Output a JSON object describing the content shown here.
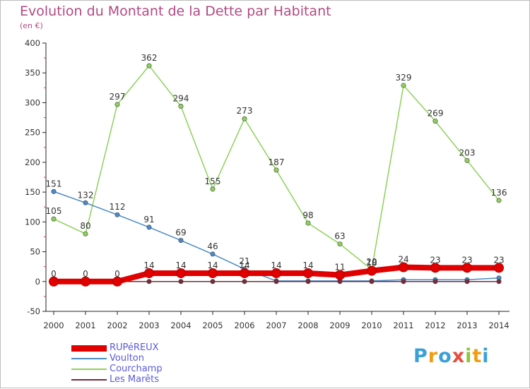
{
  "title": "Evolution du Montant de la Dette par Habitant",
  "unit_label": "(en €)",
  "brand": {
    "letters": [
      "P",
      "r",
      "o",
      "x",
      "i",
      "t",
      "i"
    ],
    "colors": [
      "#3aa0d8",
      "#f39c12",
      "#3aa0d8",
      "#e74c3c",
      "#8cc63f",
      "#f39c12",
      "#3aa0d8"
    ]
  },
  "chart_data": {
    "type": "line",
    "title": "Evolution du Montant de la Dette par Habitant",
    "ylabel": "(en €)",
    "x": [
      "2000",
      "2001",
      "2002",
      "2003",
      "2004",
      "2005",
      "2006",
      "2007",
      "2008",
      "2009",
      "2010",
      "2011",
      "2012",
      "2013",
      "2014"
    ],
    "ylim": [
      -50,
      400
    ],
    "yticks": [
      -50,
      0,
      50,
      100,
      150,
      200,
      250,
      300,
      350,
      400
    ],
    "grid": false,
    "legend_position": "bottom-left",
    "series": [
      {
        "name": "RUPéREUX",
        "color": "#e00000",
        "width": 8,
        "values": [
          0,
          0,
          0,
          14,
          14,
          14,
          14,
          14,
          14,
          11,
          18,
          24,
          23,
          23,
          23
        ],
        "labels": [
          "0",
          "0",
          "0",
          "14",
          "14",
          "14",
          "14",
          "14",
          "14",
          "11",
          "18",
          "24",
          "23",
          "23",
          "23"
        ]
      },
      {
        "name": "Voulton",
        "color": "#4a8ac8",
        "width": 1.5,
        "values": [
          151,
          132,
          112,
          91,
          69,
          46,
          21,
          1,
          1,
          1,
          1,
          3,
          3,
          3,
          6
        ],
        "labels": [
          "151",
          "132",
          "112",
          "91",
          "69",
          "46",
          "21",
          "",
          "",
          "",
          "",
          "",
          "",
          "",
          ""
        ]
      },
      {
        "name": "Courchamp",
        "color": "#8ed15a",
        "width": 1.5,
        "values": [
          105,
          80,
          297,
          362,
          294,
          155,
          273,
          187,
          98,
          63,
          20,
          329,
          269,
          203,
          136
        ],
        "labels": [
          "105",
          "80",
          "297",
          "362",
          "294",
          "155",
          "273",
          "187",
          "98",
          "63",
          "20",
          "329",
          "269",
          "203",
          "136"
        ]
      },
      {
        "name": "Les Marêts",
        "color": "#7a2a3a",
        "width": 1.5,
        "values": [
          0,
          0,
          0,
          0,
          0,
          0,
          0,
          0,
          0,
          0,
          0,
          0,
          0,
          0,
          0
        ],
        "labels": []
      }
    ]
  }
}
